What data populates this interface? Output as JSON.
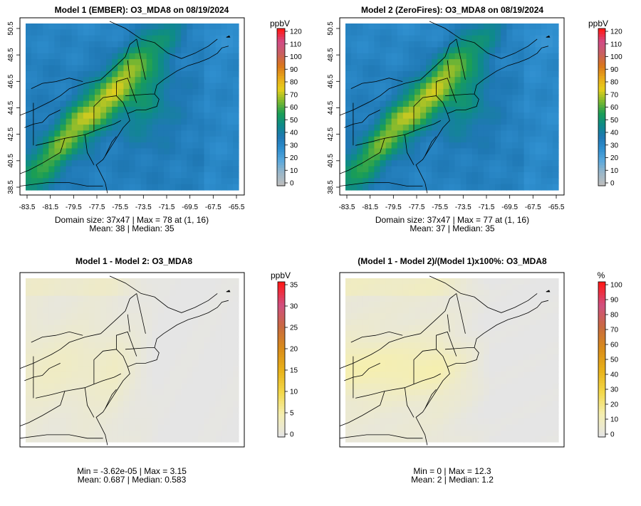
{
  "panels": [
    {
      "id": "p1",
      "title": "Model 1 (EMBER): O3_MDA8 on 08/19/2024",
      "stats": [
        "Domain size: 37x47 | Max = 78 at (1, 16)",
        "Mean: 38 |  Median: 35"
      ],
      "show_axes": true,
      "y_ticks": [
        "38.5",
        "40.5",
        "42.5",
        "44.5",
        "46.5",
        "48.5",
        "50.5"
      ],
      "x_ticks": [
        "-83.5",
        "-81.5",
        "-79.5",
        "-77.5",
        "-75.5",
        "-73.5",
        "-71.5",
        "-69.5",
        "-67.5",
        "-65.5"
      ],
      "colorbar": {
        "unit": "ppbV",
        "ticks": [
          "0",
          "10",
          "20",
          "30",
          "40",
          "50",
          "60",
          "70",
          "80",
          "90",
          "100",
          "110",
          "120"
        ],
        "colors": [
          "#bebebe",
          "#9ab7c8",
          "#5ba8dc",
          "#2f8fcf",
          "#1f78b4",
          "#0e8a8a",
          "#1a9e55",
          "#7cb82f",
          "#e6cf1c",
          "#e8a81a",
          "#d9761b",
          "#c86060",
          "#d04c88",
          "#ff1a1a"
        ]
      },
      "field": "ozone"
    },
    {
      "id": "p2",
      "title": "Model 2 (ZeroFires): O3_MDA8 on 08/19/2024",
      "stats": [
        "Domain size: 37x47 | Max = 77 at (1, 16)",
        "Mean: 37 |  Median: 35"
      ],
      "show_axes": true,
      "y_ticks": [
        "38.5",
        "40.5",
        "42.5",
        "44.5",
        "46.5",
        "48.5",
        "50.5"
      ],
      "x_ticks": [
        "-83.5",
        "-81.5",
        "-79.5",
        "-77.5",
        "-75.5",
        "-73.5",
        "-71.5",
        "-69.5",
        "-67.5",
        "-65.5"
      ],
      "colorbar": {
        "unit": "ppbV",
        "ticks": [
          "0",
          "10",
          "20",
          "30",
          "40",
          "50",
          "60",
          "70",
          "80",
          "90",
          "100",
          "110",
          "120"
        ],
        "colors": [
          "#bebebe",
          "#9ab7c8",
          "#5ba8dc",
          "#2f8fcf",
          "#1f78b4",
          "#0e8a8a",
          "#1a9e55",
          "#7cb82f",
          "#e6cf1c",
          "#e8a81a",
          "#d9761b",
          "#c86060",
          "#d04c88",
          "#ff1a1a"
        ]
      },
      "field": "ozone"
    },
    {
      "id": "p3",
      "title": "Model 1 - Model 2: O3_MDA8",
      "stats": [
        "Min = -3.62e-05 | Max = 3.15",
        "Mean: 0.687 |  Median: 0.583"
      ],
      "show_axes": false,
      "colorbar": {
        "unit": "ppbV",
        "ticks": [
          "0",
          "5",
          "10",
          "15",
          "20",
          "25",
          "30",
          "35"
        ],
        "colors": [
          "#e5e5e5",
          "#f5efb0",
          "#f3d84a",
          "#e8b21a",
          "#d98c1a",
          "#c86a40",
          "#d05080",
          "#ff1a1a"
        ]
      },
      "field": "diff"
    },
    {
      "id": "p4",
      "title": "(Model 1 - Model 2)/(Model 1)x100%: O3_MDA8",
      "stats": [
        "Min = 0 | Max = 12.3",
        "Mean: 2 |  Median: 1.2"
      ],
      "show_axes": false,
      "colorbar": {
        "unit": "%",
        "ticks": [
          "0",
          "10",
          "20",
          "30",
          "40",
          "50",
          "60",
          "70",
          "80",
          "90",
          "100"
        ],
        "colors": [
          "#e5e5e5",
          "#f5efb0",
          "#f3d84a",
          "#e8b21a",
          "#d98c1a",
          "#c86a40",
          "#d05080",
          "#ff1a1a"
        ]
      },
      "field": "pct"
    }
  ],
  "chart_data": [
    {
      "type": "heatmap",
      "title": "Model 1 (EMBER): O3_MDA8 on 08/19/2024",
      "grid_size": "37x47",
      "max": 78,
      "max_at": "(1, 16)",
      "mean": 38,
      "median": 35,
      "x_range": [
        -83.5,
        -65.5
      ],
      "y_range": [
        38.5,
        50.5
      ],
      "colorbar_range": [
        0,
        120
      ],
      "units": "ppbV"
    },
    {
      "type": "heatmap",
      "title": "Model 2 (ZeroFires): O3_MDA8 on 08/19/2024",
      "grid_size": "37x47",
      "max": 77,
      "max_at": "(1, 16)",
      "mean": 37,
      "median": 35,
      "x_range": [
        -83.5,
        -65.5
      ],
      "y_range": [
        38.5,
        50.5
      ],
      "colorbar_range": [
        0,
        120
      ],
      "units": "ppbV"
    },
    {
      "type": "heatmap",
      "title": "Model 1 - Model 2: O3_MDA8",
      "min": -3.62e-05,
      "max": 3.15,
      "mean": 0.687,
      "median": 0.583,
      "colorbar_range": [
        0,
        35
      ],
      "units": "ppbV"
    },
    {
      "type": "heatmap",
      "title": "(Model 1 - Model 2)/(Model 1)x100%: O3_MDA8",
      "min": 0,
      "max": 12.3,
      "mean": 2,
      "median": 1.2,
      "colorbar_range": [
        0,
        100
      ],
      "units": "%"
    }
  ]
}
